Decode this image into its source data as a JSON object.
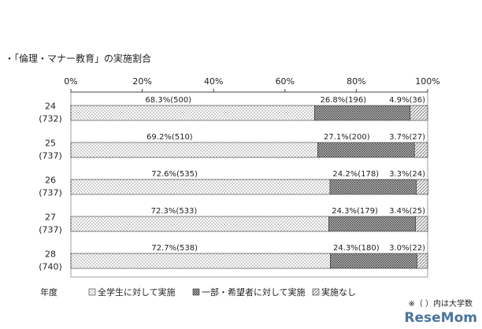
{
  "chart_data": {
    "type": "stacked-barh",
    "title": "・「倫理・マナー教育」の実施割合",
    "y_axis_label": "年度",
    "note": "※（ ）内は大学数",
    "watermark": "ReseMom",
    "categories": [
      "24",
      "25",
      "26",
      "27",
      "28"
    ],
    "category_totals": [
      "(732)",
      "(737)",
      "(737)",
      "(737)",
      "(740)"
    ],
    "xlim": [
      0,
      100
    ],
    "xticks": [
      {
        "value": 0,
        "label": "0%"
      },
      {
        "value": 20,
        "label": "20%"
      },
      {
        "value": 40,
        "label": "40%"
      },
      {
        "value": 60,
        "label": "60%"
      },
      {
        "value": 80,
        "label": "80%"
      },
      {
        "value": 100,
        "label": "100%"
      }
    ],
    "series": [
      {
        "name": "全学生に対して実施",
        "pattern": "dots",
        "color": "#f2f2f2",
        "values": [
          68.3,
          69.2,
          72.6,
          72.3,
          72.7
        ],
        "value_labels": [
          "68.3%(500)",
          "69.2%(510)",
          "72.6%(535)",
          "72.3%(533)",
          "72.7%(538)"
        ]
      },
      {
        "name": "一部・希望者に対して実施",
        "pattern": "crosshatch",
        "color": "#7a7a7a",
        "values": [
          26.8,
          27.1,
          24.2,
          24.3,
          24.3
        ],
        "value_labels": [
          "26.8%(196)",
          "27.1%(200)",
          "24.2%(178)",
          "24.3%(179)",
          "24.3%(180)"
        ]
      },
      {
        "name": "実施なし",
        "pattern": "diagonal",
        "color": "#cfcfcf",
        "values": [
          4.9,
          3.7,
          3.3,
          3.4,
          3.0
        ],
        "value_labels": [
          "4.9%(36)",
          "3.7%(27)",
          "3.3%(24)",
          "3.4%(25)",
          "3.0%(22)"
        ]
      }
    ]
  }
}
